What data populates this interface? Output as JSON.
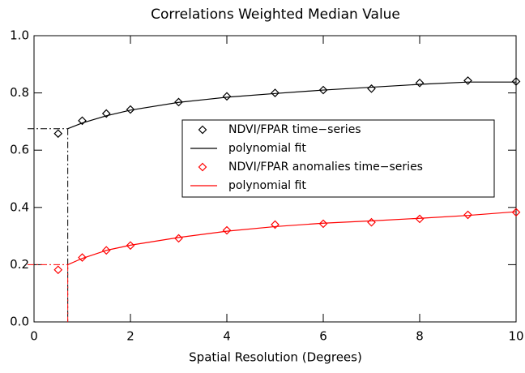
{
  "chart_data": {
    "type": "line",
    "title": "Correlations Weighted Median Value",
    "x_label": "Spatial Resolution (Degrees)",
    "xlim": [
      0,
      10
    ],
    "xticks": [
      0,
      2,
      4,
      6,
      8,
      10
    ],
    "ylim": [
      0,
      1
    ],
    "yticks": [
      {
        "value": 0,
        "label": "0.0"
      },
      {
        "value": 0.2,
        "label": "0.2"
      },
      {
        "value": 0.4,
        "label": "0.4"
      },
      {
        "value": 0.6,
        "label": "0.6"
      },
      {
        "value": 0.8,
        "label": "0.8"
      },
      {
        "value": 1,
        "label": "1.0"
      }
    ],
    "legend": "right",
    "series": [
      {
        "name": "NDVI/FPAR time−series",
        "color": "#000000",
        "marker": "diamond",
        "x": [
          0.5,
          1,
          1.5,
          2,
          3,
          4,
          5,
          6,
          7,
          8,
          9,
          10
        ],
        "values": [
          0.658,
          0.703,
          0.728,
          0.742,
          0.768,
          0.788,
          0.8,
          0.81,
          0.815,
          0.835,
          0.843,
          0.84
        ]
      },
      {
        "name": "polynomial fit",
        "color": "#000000",
        "marker": "none",
        "x": [
          0.7,
          1,
          1.5,
          2,
          3,
          4,
          5,
          6,
          7,
          8,
          9,
          10
        ],
        "values": [
          0.675,
          0.695,
          0.72,
          0.74,
          0.767,
          0.785,
          0.798,
          0.81,
          0.82,
          0.83,
          0.838,
          0.838
        ]
      },
      {
        "name": "NDVI/FPAR anomalies time−series",
        "color": "#ff0000",
        "marker": "diamond",
        "x": [
          0.5,
          1,
          1.5,
          2,
          3,
          4,
          5,
          6,
          7,
          8,
          9,
          10
        ],
        "values": [
          0.182,
          0.225,
          0.25,
          0.267,
          0.292,
          0.32,
          0.34,
          0.343,
          0.348,
          0.36,
          0.374,
          0.383
        ]
      },
      {
        "name": "polynomial fit",
        "color": "#ff0000",
        "marker": "none",
        "x": [
          0.7,
          1,
          1.5,
          2,
          3,
          4,
          5,
          6,
          7,
          8,
          9,
          10
        ],
        "values": [
          0.2,
          0.222,
          0.25,
          0.268,
          0.295,
          0.317,
          0.333,
          0.345,
          0.353,
          0.362,
          0.372,
          0.385
        ]
      }
    ],
    "reference_lines": [
      {
        "color": "#000000",
        "x": 0.7,
        "y": 0.675
      },
      {
        "color": "#ff0000",
        "x": 0.7,
        "y": 0.2
      }
    ]
  }
}
